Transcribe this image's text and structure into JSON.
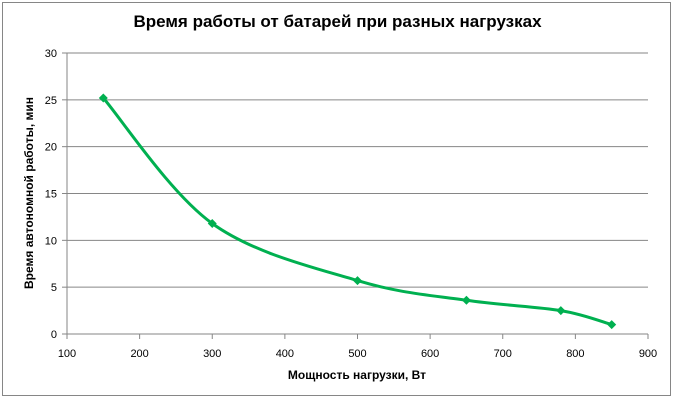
{
  "chart_data": {
    "type": "line",
    "title": "Время работы от батарей при разных нагрузках",
    "xlabel": "Мощность нагрузки, Вт",
    "ylabel": "Время автономной работы, мин",
    "x": [
      150,
      300,
      500,
      650,
      780,
      850
    ],
    "series": [
      {
        "name": "Время работы",
        "values": [
          25.2,
          11.8,
          5.7,
          3.6,
          2.5,
          1.0
        ],
        "color": "#00B050",
        "marker": "diamond",
        "smooth": true
      }
    ],
    "xlim": [
      100,
      900
    ],
    "ylim": [
      0,
      30
    ],
    "xticks": [
      "100",
      "200",
      "300",
      "400",
      "500",
      "600",
      "700",
      "800",
      "900"
    ],
    "yticks": [
      "0",
      "5",
      "10",
      "15",
      "20",
      "25",
      "30"
    ],
    "grid": {
      "horizontal": true,
      "vertical": false,
      "color": "#868686"
    },
    "legend": "none"
  }
}
